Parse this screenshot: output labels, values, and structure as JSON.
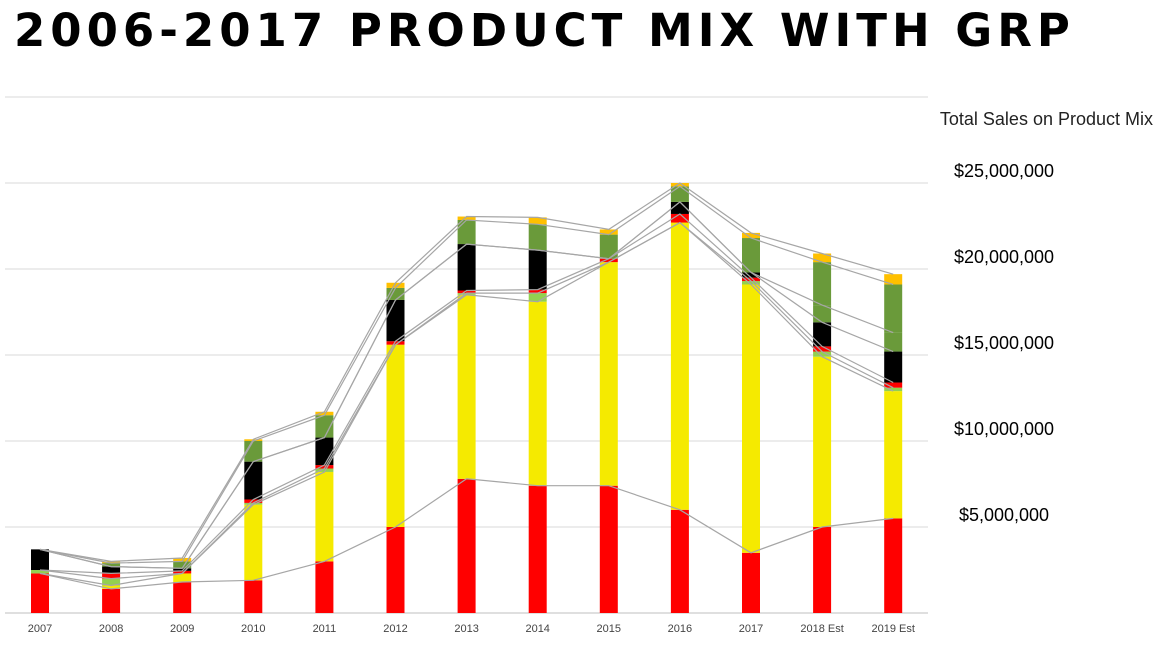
{
  "title": "2006-2017 PRODUCT MIX WITH GRP",
  "chart_data": {
    "type": "bar",
    "stacked": true,
    "title": "2006-2017 PRODUCT MIX WITH GRP",
    "ylabel": "Total Sales on Product Mix",
    "ylim": [
      0,
      30000000
    ],
    "yticks": [
      5000000,
      10000000,
      15000000,
      20000000,
      25000000
    ],
    "ytick_labels": [
      "$5,000,000",
      "$10,000,000",
      "$15,000,000",
      "$20,000,000",
      "$25,000,000"
    ],
    "grid": true,
    "legend": "none",
    "series_lines": true,
    "categories": [
      "2007",
      "2008",
      "2009",
      "2010",
      "2011",
      "2012",
      "2013",
      "2014",
      "2015",
      "2016",
      "2017",
      "2018 Est",
      "2019 Est"
    ],
    "series": [
      {
        "color": "#ff0000",
        "values": [
          2300000,
          1400000,
          1800000,
          1900000,
          3000000,
          5000000,
          7800000,
          7400000,
          7400000,
          6000000,
          3500000,
          5000000,
          5500000
        ]
      },
      {
        "color": "#f5ea00",
        "values": [
          0,
          200000,
          500000,
          4400000,
          5200000,
          10600000,
          10700000,
          10700000,
          13000000,
          16700000,
          15600000,
          9900000,
          7400000
        ]
      },
      {
        "color": "#92d050",
        "values": [
          200000,
          400000,
          0,
          100000,
          200000,
          0,
          100000,
          500000,
          0,
          0,
          200000,
          300000,
          200000
        ]
      },
      {
        "color": "#ff0000",
        "values": [
          0,
          300000,
          150000,
          200000,
          200000,
          200000,
          150000,
          200000,
          200000,
          500000,
          200000,
          300000,
          300000
        ]
      },
      {
        "color": "#000000",
        "values": [
          1200000,
          400000,
          150000,
          2200000,
          1600000,
          2400000,
          2700000,
          2300000,
          0,
          700000,
          300000,
          1400000,
          1800000
        ]
      },
      {
        "color": "#6a9a3a",
        "values": [
          0,
          0,
          0,
          0,
          0,
          0,
          0,
          0,
          0,
          0,
          0,
          1000000,
          1100000
        ]
      },
      {
        "color": "#6a9a3a",
        "values": [
          0,
          200000,
          400000,
          1200000,
          1300000,
          700000,
          1400000,
          1500000,
          1400000,
          900000,
          2000000,
          2500000,
          2800000
        ]
      },
      {
        "color": "#ffc000",
        "values": [
          0,
          100000,
          200000,
          100000,
          200000,
          300000,
          200000,
          400000,
          300000,
          200000,
          300000,
          500000,
          600000
        ]
      }
    ]
  }
}
